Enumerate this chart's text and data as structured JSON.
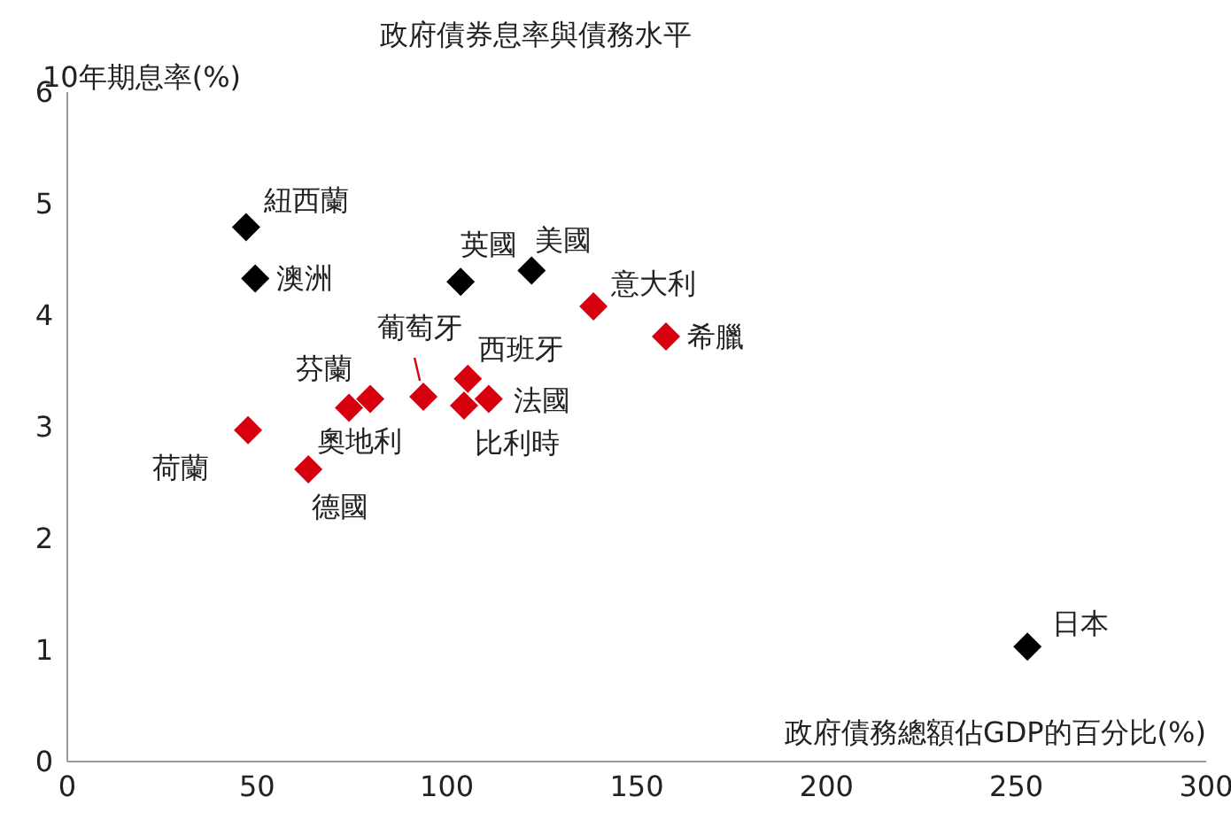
{
  "chart_data": {
    "type": "scatter",
    "title": "政府債券息率與債務水平",
    "xlabel": "政府債務總額佔GDP的百分比(%)",
    "ylabel": "10年期息率(%)",
    "xlim": [
      0,
      300
    ],
    "xticks": [
      0,
      50,
      100,
      150,
      200,
      250,
      300
    ],
    "ylim": [
      0,
      6
    ],
    "yticks": [
      0,
      1,
      2,
      3,
      4,
      5,
      6
    ],
    "grid": false,
    "legend": false,
    "marker": "diamond",
    "series": [
      {
        "color": "#000000",
        "x": [
          47.1,
          49.5,
          103.6,
          122.3,
          252.9
        ],
        "values": [
          4.79,
          4.33,
          4.3,
          4.4,
          1.03
        ]
      },
      {
        "color": "#d7000f",
        "x": [
          138.6,
          157.7,
          105.5,
          111,
          104.5,
          93.8,
          79.8,
          74.2,
          47.6,
          63.5
        ],
        "values": [
          4.08,
          3.81,
          3.43,
          3.25,
          3.19,
          3.27,
          3.25,
          3.17,
          2.97,
          2.62
        ]
      }
    ],
    "annotations": [
      {
        "text": "紐西蘭",
        "x": 47.1,
        "y": 4.79
      },
      {
        "text": "澳洲",
        "x": 49.5,
        "y": 4.33
      },
      {
        "text": "英國",
        "x": 103.6,
        "y": 4.3
      },
      {
        "text": "美國",
        "x": 122.3,
        "y": 4.4
      },
      {
        "text": "日本",
        "x": 252.9,
        "y": 1.03
      },
      {
        "text": "意大利",
        "x": 138.6,
        "y": 4.08
      },
      {
        "text": "希臘",
        "x": 157.7,
        "y": 3.81
      },
      {
        "text": "西班牙",
        "x": 105.5,
        "y": 3.43
      },
      {
        "text": "法國",
        "x": 111,
        "y": 3.25
      },
      {
        "text": "比利時",
        "x": 104.5,
        "y": 3.19
      },
      {
        "text": "葡萄牙",
        "x": 93.8,
        "y": 3.27
      },
      {
        "text": "芬蘭",
        "x": 79.8,
        "y": 3.25
      },
      {
        "text": "奧地利",
        "x": 74.2,
        "y": 3.17
      },
      {
        "text": "荷蘭",
        "x": 47.6,
        "y": 2.97
      },
      {
        "text": "德國",
        "x": 63.5,
        "y": 2.62
      }
    ]
  }
}
